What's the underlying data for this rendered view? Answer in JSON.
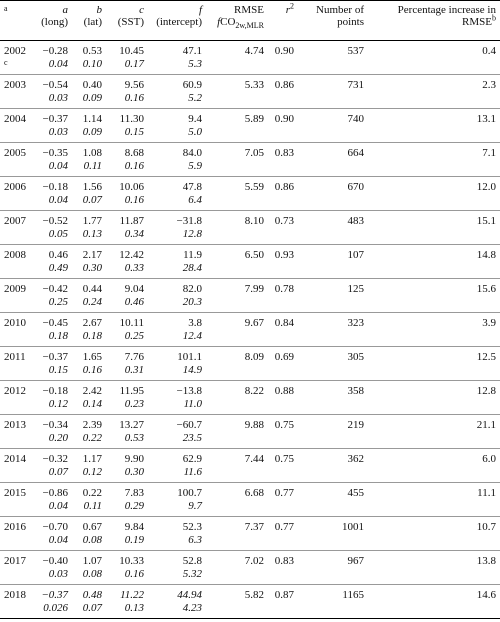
{
  "header": {
    "note": "a",
    "columns": [
      {
        "var": "a",
        "desc": "(long)"
      },
      {
        "var": "b",
        "desc": "(lat)"
      },
      {
        "var": "c",
        "desc": "(SST)"
      },
      {
        "var": "f",
        "desc": "(intercept)"
      }
    ],
    "rmse": {
      "label": "RMSE",
      "f": "f",
      "co": "CO",
      "sub": "2w,MLR"
    },
    "r2": {
      "r": "r",
      "sup": "2"
    },
    "points": "Number of points",
    "pct": {
      "label": "Percentage increase in",
      "rmse": "RMSE",
      "sup": "b"
    }
  },
  "rows": [
    {
      "year": "2002",
      "note": "c",
      "coef": [
        "−0.28",
        "0.53",
        "10.45",
        "47.1"
      ],
      "err": [
        "0.04",
        "0.10",
        "0.17",
        "5.3"
      ],
      "rmse": "4.74",
      "r2": "0.90",
      "n": "537",
      "pct": "0.4"
    },
    {
      "year": "2003",
      "coef": [
        "−0.54",
        "0.40",
        "9.56",
        "60.9"
      ],
      "err": [
        "0.03",
        "0.09",
        "0.16",
        "5.2"
      ],
      "rmse": "5.33",
      "r2": "0.86",
      "n": "731",
      "pct": "2.3"
    },
    {
      "year": "2004",
      "coef": [
        "−0.37",
        "1.14",
        "11.30",
        "9.4"
      ],
      "err": [
        "0.03",
        "0.09",
        "0.15",
        "5.0"
      ],
      "rmse": "5.89",
      "r2": "0.90",
      "n": "740",
      "pct": "13.1"
    },
    {
      "year": "2005",
      "coef": [
        "−0.35",
        "1.08",
        "8.68",
        "84.0"
      ],
      "err": [
        "0.04",
        "0.11",
        "0.16",
        "5.9"
      ],
      "rmse": "7.05",
      "r2": "0.83",
      "n": "664",
      "pct": "7.1"
    },
    {
      "year": "2006",
      "coef": [
        "−0.18",
        "1.56",
        "10.06",
        "47.8"
      ],
      "err": [
        "0.04",
        "0.07",
        "0.16",
        "6.4"
      ],
      "rmse": "5.59",
      "r2": "0.86",
      "n": "670",
      "pct": "12.0"
    },
    {
      "year": "2007",
      "coef": [
        "−0.52",
        "1.77",
        "11.87",
        "−31.8"
      ],
      "err": [
        "0.05",
        "0.13",
        "0.34",
        "12.8"
      ],
      "rmse": "8.10",
      "r2": "0.73",
      "n": "483",
      "pct": "15.1"
    },
    {
      "year": "2008",
      "coef": [
        "0.46",
        "2.17",
        "12.42",
        "11.9"
      ],
      "err": [
        "0.49",
        "0.30",
        "0.33",
        "28.4"
      ],
      "rmse": "6.50",
      "r2": "0.93",
      "n": "107",
      "pct": "14.8"
    },
    {
      "year": "2009",
      "coef": [
        "−0.42",
        "0.44",
        "9.04",
        "82.0"
      ],
      "err": [
        "0.25",
        "0.24",
        "0.46",
        "20.3"
      ],
      "rmse": "7.99",
      "r2": "0.78",
      "n": "125",
      "pct": "15.6"
    },
    {
      "year": "2010",
      "coef": [
        "−0.45",
        "2.67",
        "10.11",
        "3.8"
      ],
      "err": [
        "0.18",
        "0.18",
        "0.25",
        "12.4"
      ],
      "rmse": "9.67",
      "r2": "0.84",
      "n": "323",
      "pct": "3.9"
    },
    {
      "year": "2011",
      "coef": [
        "−0.37",
        "1.65",
        "7.76",
        "101.1"
      ],
      "err": [
        "0.15",
        "0.16",
        "0.31",
        "14.9"
      ],
      "rmse": "8.09",
      "r2": "0.69",
      "n": "305",
      "pct": "12.5"
    },
    {
      "year": "2012",
      "coef": [
        "−0.18",
        "2.42",
        "11.95",
        "−13.8"
      ],
      "err": [
        "0.12",
        "0.14",
        "0.23",
        "11.0"
      ],
      "rmse": "8.22",
      "r2": "0.88",
      "n": "358",
      "pct": "12.8"
    },
    {
      "year": "2013",
      "coef": [
        "−0.34",
        "2.39",
        "13.27",
        "−60.7"
      ],
      "err": [
        "0.20",
        "0.22",
        "0.53",
        "23.5"
      ],
      "rmse": "9.88",
      "r2": "0.75",
      "n": "219",
      "pct": "21.1"
    },
    {
      "year": "2014",
      "coef": [
        "−0.32",
        "1.17",
        "9.90",
        "62.9"
      ],
      "err": [
        "0.07",
        "0.12",
        "0.30",
        "11.6"
      ],
      "rmse": "7.44",
      "r2": "0.75",
      "n": "362",
      "pct": "6.0"
    },
    {
      "year": "2015",
      "coef": [
        "−0.86",
        "0.22",
        "7.83",
        "100.7"
      ],
      "err": [
        "0.04",
        "0.11",
        "0.29",
        "9.7"
      ],
      "rmse": "6.68",
      "r2": "0.77",
      "n": "455",
      "pct": "11.1"
    },
    {
      "year": "2016",
      "coef": [
        "−0.70",
        "0.67",
        "9.84",
        "52.3"
      ],
      "err": [
        "0.04",
        "0.08",
        "0.19",
        "6.3"
      ],
      "rmse": "7.37",
      "r2": "0.77",
      "n": "1001",
      "pct": "10.7"
    },
    {
      "year": "2017",
      "coef": [
        "−0.40",
        "1.07",
        "10.33",
        "52.8"
      ],
      "err": [
        "0.03",
        "0.08",
        "0.16",
        "5.32"
      ],
      "rmse": "7.02",
      "r2": "0.83",
      "n": "967",
      "pct": "13.8"
    },
    {
      "year": "2018",
      "coef": [
        "−0.37",
        "0.48",
        "11.22",
        "44.94"
      ],
      "err": [
        "0.026",
        "0.07",
        "0.13",
        "4.23"
      ],
      "rmse": "5.82",
      "r2": "0.87",
      "n": "1165",
      "pct": "14.6"
    }
  ]
}
